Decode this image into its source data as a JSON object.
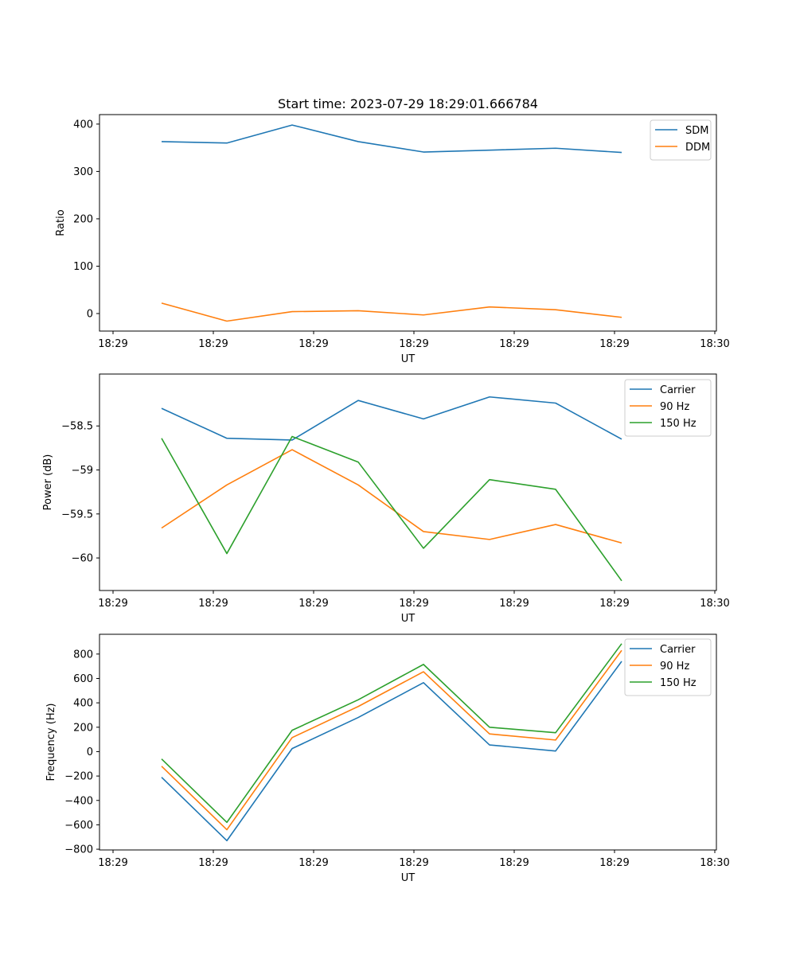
{
  "figure": {
    "title": "Start time: 2023-07-29 18:29:01.666784"
  },
  "chart_data": [
    {
      "type": "line",
      "xlabel": "UT",
      "ylabel": "Ratio",
      "x_ticks": [
        "18:29",
        "18:29",
        "18:29",
        "18:29",
        "18:29",
        "18:29",
        "18:30"
      ],
      "ylim": [
        -37,
        420
      ],
      "y_ticks": [
        0,
        100,
        200,
        300,
        400
      ],
      "legend_position": "top-right",
      "series": [
        {
          "name": "SDM",
          "color": "#1f77b4",
          "values": [
            363,
            360,
            398,
            363,
            341,
            345,
            349,
            340
          ]
        },
        {
          "name": "DDM",
          "color": "#ff7f0e",
          "values": [
            22,
            -16,
            4,
            6,
            -3,
            14,
            8,
            -8
          ]
        }
      ]
    },
    {
      "type": "line",
      "xlabel": "UT",
      "ylabel": "Power (dB)",
      "x_ticks": [
        "18:29",
        "18:29",
        "18:29",
        "18:29",
        "18:29",
        "18:29",
        "18:30"
      ],
      "ylim": [
        -60.37,
        -57.91
      ],
      "y_ticks": [
        -58.5,
        -59.0,
        -59.5,
        -60.0
      ],
      "legend_position": "top-right",
      "series": [
        {
          "name": "Carrier",
          "color": "#1f77b4",
          "values": [
            -58.3,
            -58.64,
            -58.66,
            -58.21,
            -58.42,
            -58.17,
            -58.24,
            -58.65
          ]
        },
        {
          "name": "90 Hz",
          "color": "#ff7f0e",
          "values": [
            -59.66,
            -59.17,
            -58.77,
            -59.17,
            -59.7,
            -59.79,
            -59.62,
            -59.83
          ]
        },
        {
          "name": "150 Hz",
          "color": "#2ca02c",
          "values": [
            -58.64,
            -59.95,
            -58.62,
            -58.91,
            -59.89,
            -59.11,
            -59.22,
            -60.26
          ]
        }
      ]
    },
    {
      "type": "line",
      "xlabel": "UT",
      "ylabel": "Frequency (Hz)",
      "x_ticks": [
        "18:29",
        "18:29",
        "18:29",
        "18:29",
        "18:29",
        "18:29",
        "18:30"
      ],
      "ylim": [
        -806,
        962
      ],
      "y_ticks": [
        800,
        600,
        400,
        200,
        0,
        -200,
        -400,
        -600,
        -800
      ],
      "legend_position": "top-right",
      "series": [
        {
          "name": "Carrier",
          "color": "#1f77b4",
          "values": [
            -210,
            -730,
            25,
            280,
            565,
            55,
            5,
            740
          ]
        },
        {
          "name": "90 Hz",
          "color": "#ff7f0e",
          "values": [
            -120,
            -640,
            115,
            370,
            655,
            145,
            95,
            830
          ]
        },
        {
          "name": "150 Hz",
          "color": "#2ca02c",
          "values": [
            -60,
            -580,
            175,
            425,
            715,
            200,
            155,
            885
          ]
        }
      ]
    }
  ]
}
